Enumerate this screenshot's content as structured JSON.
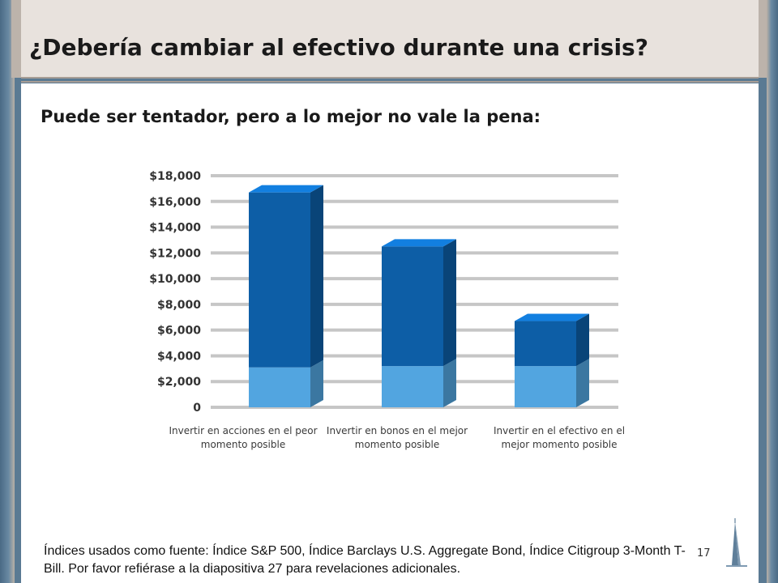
{
  "slide": {
    "title": "¿Debería cambiar al efectivo durante una crisis?",
    "subtitle": "Puede ser tentador, pero a lo mejor no vale la pena:",
    "footnote": "Índices usados como fuente:  Índice S&P 500, Índice Barclays U.S. Aggregate Bond, Índice Citigroup 3-Month T-Bill. Por favor refiérase a la diapositiva 27 para revelaciones adicionales.",
    "page_number": "17",
    "logo_icon": "transamerica-pyramid-icon"
  },
  "chart_data": {
    "type": "bar",
    "stacked": true,
    "categories": [
      "Invertir en acciones en el peor momento posible",
      "Invertir en bonos en el mejor momento posible",
      "Invertir en el efectivo en el mejor momento posible"
    ],
    "series": [
      {
        "values": [
          3100,
          3200,
          3200
        ],
        "color": "#52a5e0"
      },
      {
        "values": [
          13600,
          9300,
          3500
        ],
        "color": "#0d5ea6"
      }
    ],
    "totals": [
      16700,
      12500,
      6700
    ],
    "y_ticks": [
      0,
      2000,
      4000,
      6000,
      8000,
      10000,
      12000,
      14000,
      16000,
      18000
    ],
    "y_tick_labels": [
      "0",
      "$2,000",
      "$4,000",
      "$6,000",
      "$8,000",
      "$10,000",
      "$12,000",
      "$14,000",
      "$16,000",
      "$18,000"
    ],
    "ylim": [
      0,
      18000
    ],
    "grid": true,
    "legend": "none",
    "title": "",
    "xlabel": "",
    "ylabel": ""
  }
}
